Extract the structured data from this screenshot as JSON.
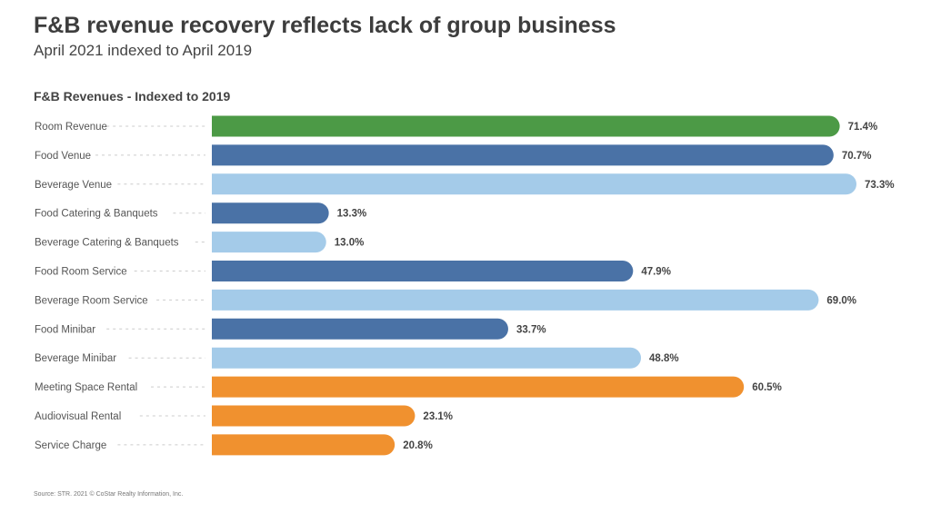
{
  "title": "F&B revenue recovery reflects lack of group business",
  "subtitle": "April 2021 indexed to April 2019",
  "source": "Source: STR. 2021 © CoStar Realty Information, Inc.",
  "chart_data": {
    "type": "bar",
    "orientation": "horizontal",
    "title": "F&B Revenues - Indexed to 2019",
    "unit": "%",
    "categories": [
      "Room Revenue",
      "Food Venue",
      "Beverage Venue",
      "Food Catering & Banquets",
      "Beverage Catering & Banquets",
      "Food Room Service",
      "Beverage Room Service",
      "Food Minibar",
      "Beverage Minibar",
      "Meeting Space Rental",
      "Audiovisual Rental",
      "Service Charge"
    ],
    "values": [
      71.4,
      70.7,
      73.3,
      13.3,
      13.0,
      47.9,
      69.0,
      33.7,
      48.8,
      60.5,
      23.1,
      20.8
    ],
    "labels": [
      "71.4%",
      "70.7%",
      "73.3%",
      "13.3%",
      "13.0%",
      "47.9%",
      "69.0%",
      "33.7%",
      "48.8%",
      "60.5%",
      "23.1%",
      "20.8%"
    ],
    "colors": [
      "#4c9a46",
      "#4a72a6",
      "#a4cbe9",
      "#4a72a6",
      "#a4cbe9",
      "#4a72a6",
      "#a4cbe9",
      "#4a72a6",
      "#a4cbe9",
      "#f0912f",
      "#f0912f",
      "#f0912f"
    ],
    "xlim": [
      0,
      73.3
    ],
    "grid": false
  }
}
